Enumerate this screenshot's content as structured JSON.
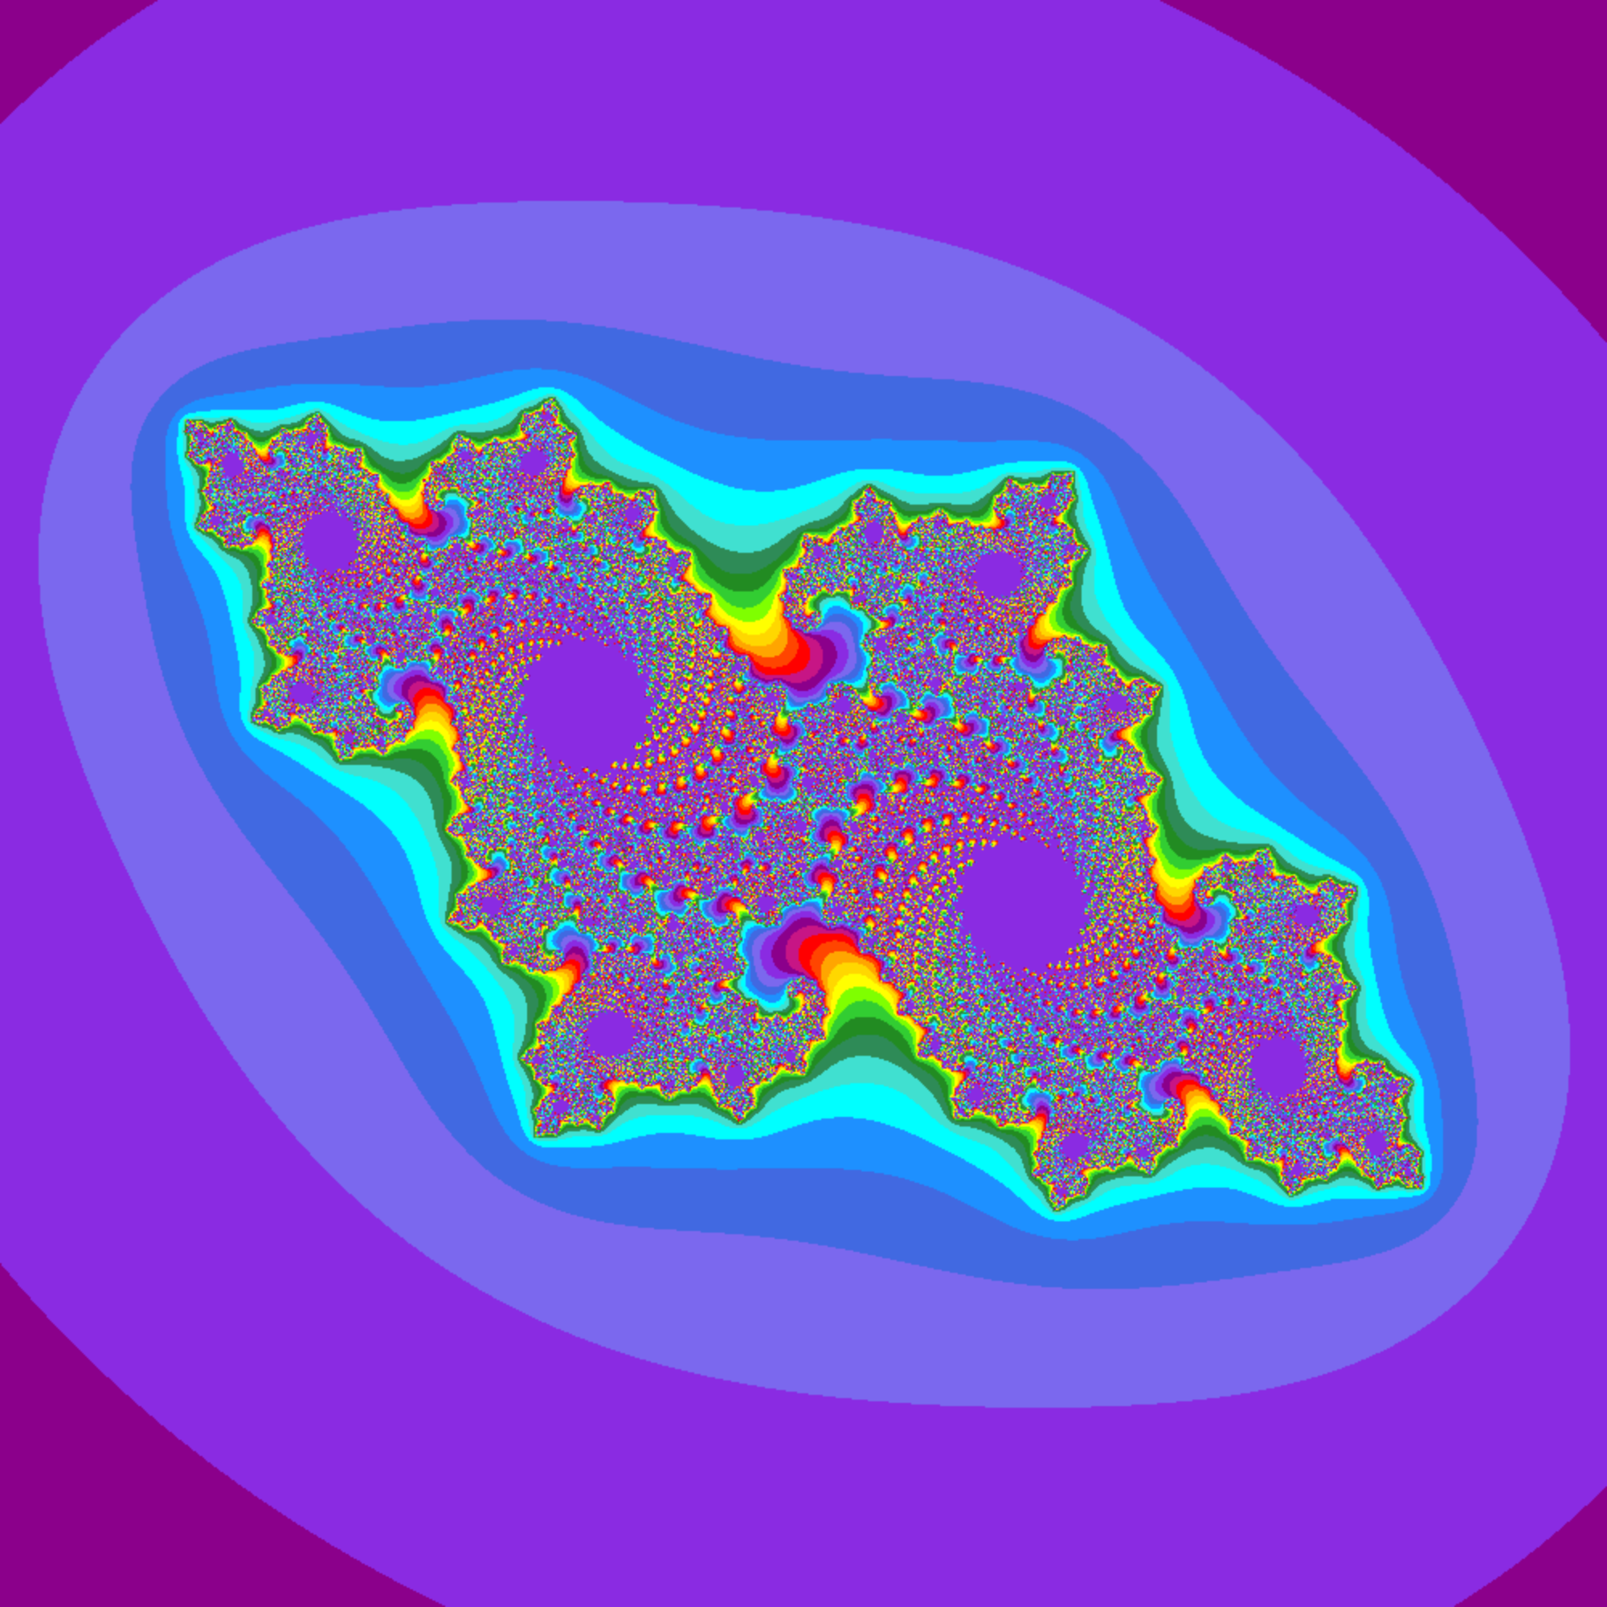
{
  "image": {
    "subject": "julia-set-fractal",
    "background_color": "#DC143C",
    "palette": [
      "#DC143C",
      "#C71585",
      "#8B008B",
      "#8A2BE2",
      "#7B68EE",
      "#4169E1",
      "#1E90FF",
      "#00FFFF",
      "#40E0D0",
      "#2E8B57",
      "#228B22",
      "#32CD32",
      "#7FFF00",
      "#FFFF00",
      "#FFD700",
      "#FFA500",
      "#FF4500",
      "#FF0000"
    ]
  }
}
